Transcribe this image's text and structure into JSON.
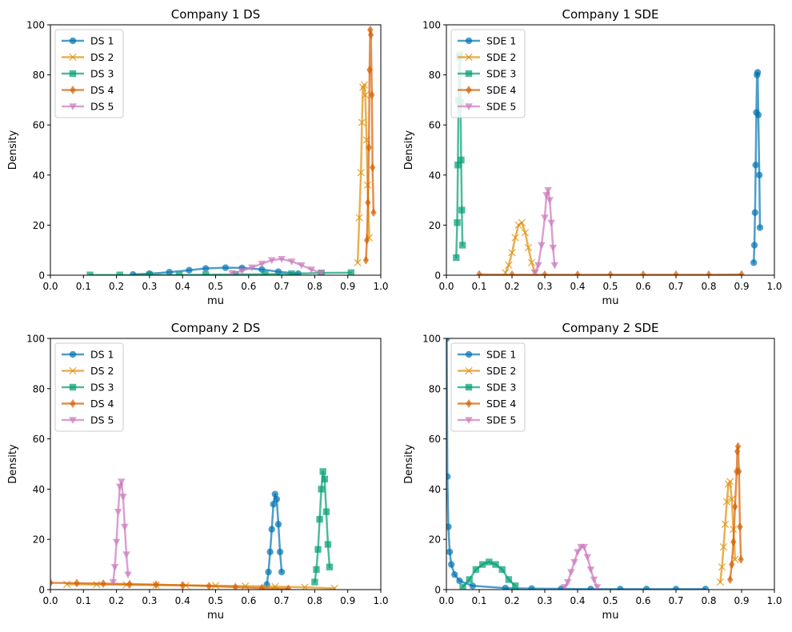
{
  "chart_data": [
    {
      "type": "line",
      "title": "Company 1 DS",
      "xlabel": "mu",
      "ylabel": "Density",
      "xlim": [
        0.0,
        1.0
      ],
      "ylim": [
        0,
        100
      ],
      "xticks": [
        "0.0",
        "0.1",
        "0.2",
        "0.3",
        "0.4",
        "0.5",
        "0.6",
        "0.7",
        "0.8",
        "0.9",
        "1.0"
      ],
      "yticks": [
        "0",
        "20",
        "40",
        "60",
        "80",
        "100"
      ],
      "legend_position": "top-left",
      "series": [
        {
          "name": "DS 1",
          "color": "#0173b2",
          "marker": "circle",
          "points": [
            [
              0.25,
              0.3
            ],
            [
              0.3,
              0.6
            ],
            [
              0.36,
              1.2
            ],
            [
              0.42,
              2.0
            ],
            [
              0.47,
              2.7
            ],
            [
              0.53,
              3.0
            ],
            [
              0.58,
              2.9
            ],
            [
              0.64,
              2.3
            ],
            [
              0.69,
              1.4
            ],
            [
              0.75,
              0.6
            ]
          ]
        },
        {
          "name": "DS 2",
          "color": "#de8f05",
          "marker": "x",
          "points": [
            [
              0.93,
              5
            ],
            [
              0.935,
              23
            ],
            [
              0.94,
              41
            ],
            [
              0.943,
              61
            ],
            [
              0.946,
              75
            ],
            [
              0.95,
              76
            ],
            [
              0.953,
              72
            ],
            [
              0.957,
              54
            ],
            [
              0.96,
              36
            ],
            [
              0.965,
              15
            ]
          ]
        },
        {
          "name": "DS 3",
          "color": "#029e73",
          "marker": "square",
          "points": [
            [
              0.12,
              0.1
            ],
            [
              0.21,
              0.1
            ],
            [
              0.3,
              0.1
            ],
            [
              0.39,
              0.1
            ],
            [
              0.47,
              0.2
            ],
            [
              0.56,
              0.3
            ],
            [
              0.65,
              0.4
            ],
            [
              0.73,
              0.6
            ],
            [
              0.82,
              0.9
            ],
            [
              0.91,
              1.0
            ]
          ]
        },
        {
          "name": "DS 4",
          "color": "#d55e00",
          "marker": "diamond",
          "points": [
            [
              0.955,
              6
            ],
            [
              0.958,
              14
            ],
            [
              0.961,
              29
            ],
            [
              0.964,
              51
            ],
            [
              0.966,
              82
            ],
            [
              0.968,
              98
            ],
            [
              0.97,
              96
            ],
            [
              0.973,
              72
            ],
            [
              0.975,
              43
            ],
            [
              0.978,
              25
            ]
          ]
        },
        {
          "name": "DS 5",
          "color": "#cc78bc",
          "marker": "triangle-down",
          "points": [
            [
              0.55,
              0.8
            ],
            [
              0.58,
              1.7
            ],
            [
              0.61,
              3.1
            ],
            [
              0.64,
              4.6
            ],
            [
              0.67,
              6.0
            ],
            [
              0.7,
              6.5
            ],
            [
              0.73,
              5.5
            ],
            [
              0.76,
              4.0
            ],
            [
              0.79,
              2.3
            ],
            [
              0.82,
              0.9
            ]
          ]
        }
      ]
    },
    {
      "type": "line",
      "title": "Company 1 SDE",
      "xlabel": "mu",
      "ylabel": "Density",
      "xlim": [
        0.0,
        1.0
      ],
      "ylim": [
        0,
        100
      ],
      "xticks": [
        "0.0",
        "0.1",
        "0.2",
        "0.3",
        "0.4",
        "0.5",
        "0.6",
        "0.7",
        "0.8",
        "0.9",
        "1.0"
      ],
      "yticks": [
        "0",
        "20",
        "40",
        "60",
        "80",
        "100"
      ],
      "legend_position": "top-left",
      "series": [
        {
          "name": "SDE 1",
          "color": "#0173b2",
          "marker": "circle",
          "points": [
            [
              0.937,
              5
            ],
            [
              0.939,
              12
            ],
            [
              0.941,
              25
            ],
            [
              0.943,
              44
            ],
            [
              0.945,
              65
            ],
            [
              0.947,
              80
            ],
            [
              0.949,
              81
            ],
            [
              0.951,
              64
            ],
            [
              0.954,
              40
            ],
            [
              0.956,
              19
            ]
          ]
        },
        {
          "name": "SDE 2",
          "color": "#de8f05",
          "marker": "x",
          "points": [
            [
              0.18,
              1
            ],
            [
              0.19,
              4
            ],
            [
              0.2,
              9
            ],
            [
              0.21,
              15
            ],
            [
              0.22,
              20
            ],
            [
              0.23,
              21
            ],
            [
              0.24,
              17
            ],
            [
              0.25,
              11
            ],
            [
              0.26,
              5
            ],
            [
              0.27,
              1
            ]
          ]
        },
        {
          "name": "SDE 3",
          "color": "#029e73",
          "marker": "square",
          "points": [
            [
              0.03,
              7
            ],
            [
              0.033,
              21
            ],
            [
              0.035,
              44
            ],
            [
              0.037,
              70
            ],
            [
              0.039,
              87
            ],
            [
              0.041,
              88
            ],
            [
              0.043,
              69
            ],
            [
              0.045,
              46
            ],
            [
              0.047,
              26
            ],
            [
              0.049,
              12
            ]
          ]
        },
        {
          "name": "SDE 4",
          "color": "#d55e00",
          "marker": "diamond",
          "points": [
            [
              0.1,
              0.3
            ],
            [
              0.2,
              0.2
            ],
            [
              0.3,
              0.2
            ],
            [
              0.4,
              0.2
            ],
            [
              0.5,
              0.2
            ],
            [
              0.6,
              0.2
            ],
            [
              0.7,
              0.2
            ],
            [
              0.8,
              0.2
            ],
            [
              0.9,
              0.3
            ]
          ]
        },
        {
          "name": "SDE 5",
          "color": "#cc78bc",
          "marker": "triangle-down",
          "points": [
            [
              0.27,
              1
            ],
            [
              0.28,
              4
            ],
            [
              0.29,
              12
            ],
            [
              0.3,
              23
            ],
            [
              0.305,
              32
            ],
            [
              0.31,
              34
            ],
            [
              0.315,
              30
            ],
            [
              0.32,
              21
            ],
            [
              0.325,
              11
            ],
            [
              0.33,
              4
            ]
          ]
        }
      ]
    },
    {
      "type": "line",
      "title": "Company 2 DS",
      "xlabel": "mu",
      "ylabel": "Density",
      "xlim": [
        0.0,
        1.0
      ],
      "ylim": [
        0,
        100
      ],
      "xticks": [
        "0.0",
        "0.1",
        "0.2",
        "0.3",
        "0.4",
        "0.5",
        "0.6",
        "0.7",
        "0.8",
        "0.9",
        "1.0"
      ],
      "yticks": [
        "0",
        "20",
        "40",
        "60",
        "80",
        "100"
      ],
      "legend_position": "top-left",
      "series": [
        {
          "name": "DS 1",
          "color": "#0173b2",
          "marker": "circle",
          "points": [
            [
              0.655,
              2
            ],
            [
              0.66,
              7
            ],
            [
              0.665,
              15
            ],
            [
              0.67,
              24
            ],
            [
              0.675,
              34
            ],
            [
              0.68,
              38
            ],
            [
              0.685,
              36
            ],
            [
              0.69,
              26
            ],
            [
              0.695,
              15
            ],
            [
              0.7,
              7
            ]
          ]
        },
        {
          "name": "DS 2",
          "color": "#de8f05",
          "marker": "x",
          "points": [
            [
              0.05,
              2.1
            ],
            [
              0.14,
              2.0
            ],
            [
              0.23,
              1.9
            ],
            [
              0.32,
              1.8
            ],
            [
              0.41,
              1.7
            ],
            [
              0.5,
              1.6
            ],
            [
              0.59,
              1.4
            ],
            [
              0.68,
              1.2
            ],
            [
              0.77,
              0.9
            ],
            [
              0.86,
              0.5
            ]
          ]
        },
        {
          "name": "DS 3",
          "color": "#029e73",
          "marker": "square",
          "points": [
            [
              0.8,
              3
            ],
            [
              0.805,
              8
            ],
            [
              0.81,
              16
            ],
            [
              0.815,
              28
            ],
            [
              0.82,
              40
            ],
            [
              0.825,
              47
            ],
            [
              0.83,
              44
            ],
            [
              0.835,
              31
            ],
            [
              0.84,
              18
            ],
            [
              0.845,
              9
            ]
          ]
        },
        {
          "name": "DS 4",
          "color": "#d55e00",
          "marker": "diamond",
          "points": [
            [
              0.0,
              2.7
            ],
            [
              0.08,
              2.6
            ],
            [
              0.16,
              2.4
            ],
            [
              0.24,
              2.2
            ],
            [
              0.32,
              2.0
            ],
            [
              0.4,
              1.7
            ],
            [
              0.48,
              1.4
            ],
            [
              0.56,
              1.0
            ],
            [
              0.64,
              0.6
            ],
            [
              0.72,
              0.3
            ]
          ]
        },
        {
          "name": "DS 5",
          "color": "#cc78bc",
          "marker": "triangle-down",
          "points": [
            [
              0.19,
              3
            ],
            [
              0.195,
              9
            ],
            [
              0.2,
              19
            ],
            [
              0.205,
              31
            ],
            [
              0.21,
              41
            ],
            [
              0.215,
              43
            ],
            [
              0.22,
              37
            ],
            [
              0.225,
              25
            ],
            [
              0.23,
              14
            ],
            [
              0.235,
              6
            ]
          ]
        }
      ]
    },
    {
      "type": "line",
      "title": "Company 2 SDE",
      "xlabel": "mu",
      "ylabel": "Density",
      "xlim": [
        0.0,
        1.0
      ],
      "ylim": [
        0,
        100
      ],
      "xticks": [
        "0.0",
        "0.1",
        "0.2",
        "0.3",
        "0.4",
        "0.5",
        "0.6",
        "0.7",
        "0.8",
        "0.9",
        "1.0"
      ],
      "yticks": [
        "0",
        "20",
        "40",
        "60",
        "80",
        "100"
      ],
      "legend_position": "top-left",
      "series": [
        {
          "name": "SDE 1",
          "color": "#0173b2",
          "marker": "circle",
          "points": [
            [
              0.001,
              100
            ],
            [
              0.003,
              45
            ],
            [
              0.006,
              25
            ],
            [
              0.01,
              15
            ],
            [
              0.015,
              10
            ],
            [
              0.025,
              6
            ],
            [
              0.04,
              3.5
            ],
            [
              0.08,
              1.5
            ],
            [
              0.18,
              0.6
            ],
            [
              0.26,
              0.4
            ],
            [
              0.35,
              0.3
            ],
            [
              0.44,
              0.2
            ],
            [
              0.53,
              0.2
            ],
            [
              0.61,
              0.2
            ],
            [
              0.7,
              0.2
            ],
            [
              0.79,
              0.2
            ]
          ]
        },
        {
          "name": "SDE 2",
          "color": "#de8f05",
          "marker": "x",
          "points": [
            [
              0.835,
              3
            ],
            [
              0.84,
              9
            ],
            [
              0.845,
              17
            ],
            [
              0.85,
              26
            ],
            [
              0.855,
              35
            ],
            [
              0.86,
              42
            ],
            [
              0.865,
              43
            ],
            [
              0.87,
              36
            ],
            [
              0.875,
              24
            ],
            [
              0.88,
              12
            ]
          ]
        },
        {
          "name": "SDE 3",
          "color": "#029e73",
          "marker": "square",
          "points": [
            [
              0.05,
              1
            ],
            [
              0.07,
              4
            ],
            [
              0.09,
              8
            ],
            [
              0.11,
              10
            ],
            [
              0.13,
              11
            ],
            [
              0.15,
              10
            ],
            [
              0.17,
              8
            ],
            [
              0.19,
              4
            ],
            [
              0.21,
              1.5
            ]
          ]
        },
        {
          "name": "SDE 4",
          "color": "#d55e00",
          "marker": "diamond",
          "points": [
            [
              0.865,
              4
            ],
            [
              0.87,
              10
            ],
            [
              0.875,
              19
            ],
            [
              0.88,
              33
            ],
            [
              0.885,
              47
            ],
            [
              0.887,
              55
            ],
            [
              0.889,
              57
            ],
            [
              0.892,
              47
            ],
            [
              0.895,
              25
            ],
            [
              0.898,
              12
            ]
          ]
        },
        {
          "name": "SDE 5",
          "color": "#cc78bc",
          "marker": "triangle-down",
          "points": [
            [
              0.36,
              1
            ],
            [
              0.37,
              3
            ],
            [
              0.38,
              7
            ],
            [
              0.39,
              11
            ],
            [
              0.4,
              15
            ],
            [
              0.41,
              17
            ],
            [
              0.42,
              17
            ],
            [
              0.43,
              13
            ],
            [
              0.44,
              8
            ],
            [
              0.45,
              4
            ],
            [
              0.46,
              1
            ]
          ]
        }
      ]
    }
  ]
}
